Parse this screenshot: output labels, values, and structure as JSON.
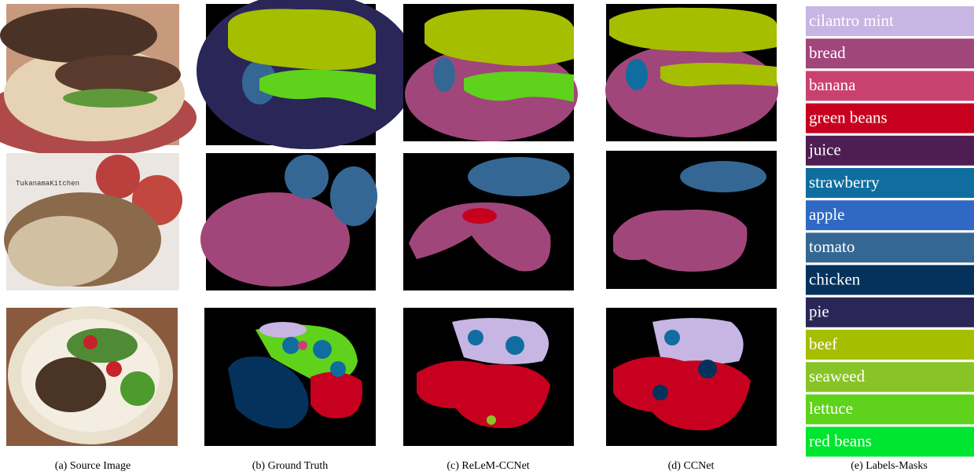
{
  "captions": [
    "(a)  Source Image",
    "(b)  Ground Truth",
    "(c)  ReLeM-CCNet",
    "(d)  CCNet",
    "(e)  Labels-Masks"
  ],
  "legend": [
    {
      "label": "cilantro mint",
      "color": "#c7b5e3"
    },
    {
      "label": "bread",
      "color": "#a1467b"
    },
    {
      "label": "banana",
      "color": "#c9426f"
    },
    {
      "label": "green beans",
      "color": "#c8001f"
    },
    {
      "label": "juice",
      "color": "#4e1e52"
    },
    {
      "label": "strawberry",
      "color": "#0f6e9f"
    },
    {
      "label": "apple",
      "color": "#2f69c3"
    },
    {
      "label": "tomato",
      "color": "#346794"
    },
    {
      "label": "chicken",
      "color": "#04325d"
    },
    {
      "label": "pie",
      "color": "#2a2657"
    },
    {
      "label": "beef",
      "color": "#a6be00"
    },
    {
      "label": "seaweed",
      "color": "#89c426"
    },
    {
      "label": "lettuce",
      "color": "#5fd21c"
    },
    {
      "label": "red beans",
      "color": "#00e52f"
    }
  ]
}
